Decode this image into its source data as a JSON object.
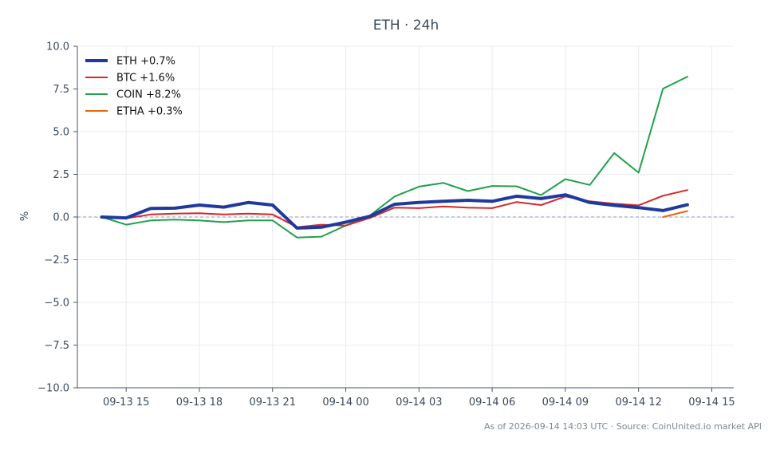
{
  "chart_data": {
    "type": "line",
    "title": "ETH · 24h",
    "xlabel": "",
    "ylabel": "%",
    "ylim": [
      -10,
      10
    ],
    "xlim_hours": [
      13.0,
      39.9
    ],
    "yticks": [
      {
        "v": 10,
        "label": "10.0"
      },
      {
        "v": 7.5,
        "label": "7.5"
      },
      {
        "v": 5,
        "label": "5.0"
      },
      {
        "v": 2.5,
        "label": "2.5"
      },
      {
        "v": 0,
        "label": "0.0"
      },
      {
        "v": -2.5,
        "label": "−2.5"
      },
      {
        "v": -5,
        "label": "−5.0"
      },
      {
        "v": -7.5,
        "label": "−7.5"
      },
      {
        "v": -10,
        "label": "−10.0"
      }
    ],
    "xticks": [
      {
        "h": 15,
        "label": "09-13 15"
      },
      {
        "h": 18,
        "label": "09-13 18"
      },
      {
        "h": 21,
        "label": "09-13 21"
      },
      {
        "h": 24,
        "label": "09-14 00"
      },
      {
        "h": 27,
        "label": "09-14 03"
      },
      {
        "h": 30,
        "label": "09-14 06"
      },
      {
        "h": 33,
        "label": "09-14 09"
      },
      {
        "h": 36,
        "label": "09-14 12"
      },
      {
        "h": 39,
        "label": "09-14 15"
      }
    ],
    "grid": true,
    "zero_line": true,
    "legend_position": "top-left",
    "footer": "As of 2026-09-14 14:03 UTC · Source: CoinUnited.io market API",
    "series": [
      {
        "name": "ETH +0.7%",
        "color": "#1f3a9e",
        "width": 4,
        "x": [
          14,
          15,
          16,
          17,
          18,
          19,
          20,
          21,
          22,
          23,
          24,
          25,
          26,
          27,
          28,
          29,
          30,
          31,
          32,
          33,
          34,
          35,
          36,
          37,
          38
        ],
        "y": [
          0.0,
          -0.05,
          0.5,
          0.52,
          0.7,
          0.58,
          0.85,
          0.7,
          -0.65,
          -0.6,
          -0.3,
          0.05,
          0.75,
          0.85,
          0.92,
          0.98,
          0.92,
          1.22,
          1.08,
          1.3,
          0.85,
          0.68,
          0.55,
          0.38,
          0.72
        ]
      },
      {
        "name": "BTC +1.6%",
        "color": "#d62728",
        "width": 2,
        "x": [
          14,
          15,
          16,
          17,
          18,
          19,
          20,
          21,
          22,
          23,
          24,
          25,
          26,
          27,
          28,
          29,
          30,
          31,
          32,
          33,
          34,
          35,
          36,
          37,
          38
        ],
        "y": [
          0.0,
          -0.08,
          0.15,
          0.2,
          0.22,
          0.15,
          0.2,
          0.15,
          -0.6,
          -0.45,
          -0.5,
          -0.05,
          0.55,
          0.52,
          0.62,
          0.55,
          0.52,
          0.88,
          0.7,
          1.2,
          0.92,
          0.78,
          0.68,
          1.25,
          1.58
        ]
      },
      {
        "name": "COIN +8.2%",
        "color": "#22a04a",
        "width": 2,
        "x": [
          14,
          15,
          16,
          17,
          18,
          19,
          20,
          21,
          22,
          23,
          24,
          25,
          26,
          27,
          28,
          29,
          30,
          31,
          32,
          33,
          34,
          35,
          36,
          37,
          38
        ],
        "y": [
          0.0,
          -0.45,
          -0.2,
          -0.15,
          -0.2,
          -0.3,
          -0.2,
          -0.2,
          -1.2,
          -1.15,
          -0.5,
          0.1,
          1.2,
          1.78,
          2.0,
          1.52,
          1.82,
          1.8,
          1.28,
          2.22,
          1.88,
          3.75,
          2.6,
          7.52,
          8.22
        ]
      },
      {
        "name": "ETHA +0.3%",
        "color": "#e8650a",
        "width": 2,
        "x": [
          37,
          38
        ],
        "y": [
          0.0,
          0.35
        ]
      }
    ]
  }
}
